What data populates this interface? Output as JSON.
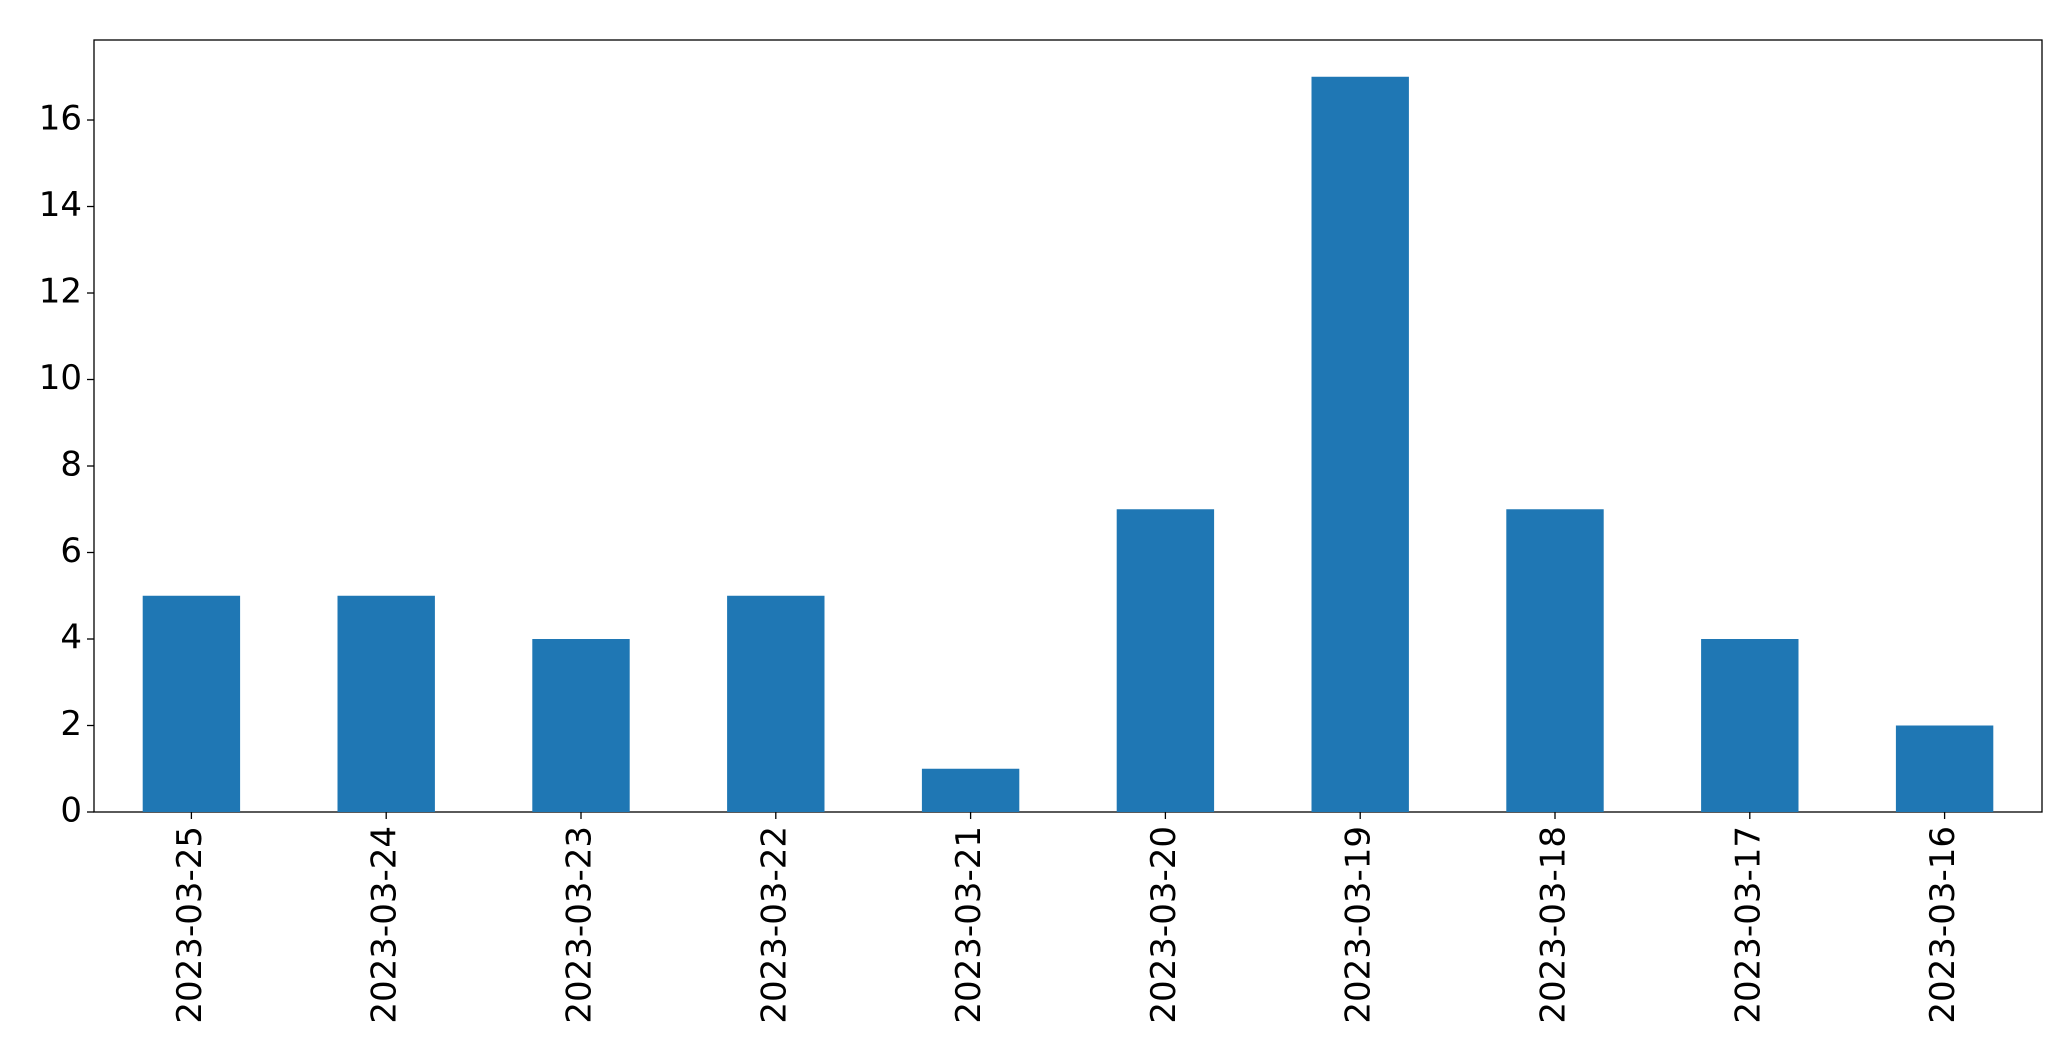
{
  "chart_data": {
    "type": "bar",
    "categories": [
      "2023-03-25",
      "2023-03-24",
      "2023-03-23",
      "2023-03-22",
      "2023-03-21",
      "2023-03-20",
      "2023-03-19",
      "2023-03-18",
      "2023-03-17",
      "2023-03-16"
    ],
    "values": [
      5,
      5,
      4,
      5,
      1,
      7,
      17,
      7,
      4,
      2
    ],
    "color": "#1f77b4",
    "ylim": [
      0,
      17.85
    ],
    "yticks": [
      0,
      2,
      4,
      6,
      8,
      10,
      12,
      14,
      16
    ],
    "grid": false
  }
}
